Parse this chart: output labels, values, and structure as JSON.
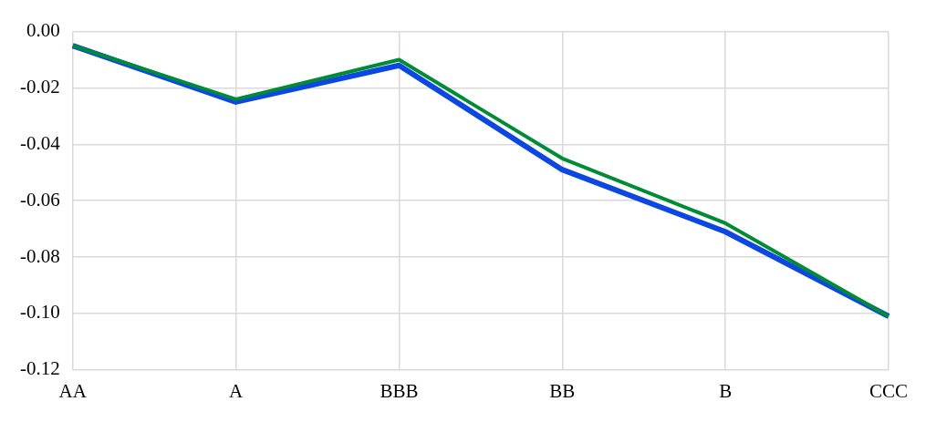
{
  "chart_data": {
    "type": "line",
    "categories": [
      "AA",
      "A",
      "BBB",
      "BB",
      "B",
      "CCC"
    ],
    "series": [
      {
        "color": "#0b47e0",
        "values": [
          -0.005,
          -0.025,
          -0.012,
          -0.049,
          -0.071,
          -0.101
        ]
      },
      {
        "color": "#008c35",
        "values": [
          -0.005,
          -0.024,
          -0.01,
          -0.045,
          -0.068,
          -0.101
        ]
      }
    ],
    "ylim": [
      -0.12,
      0
    ],
    "yticks": [
      {
        "value": -0.12,
        "label": "-0.12"
      },
      {
        "value": -0.1,
        "label": "-0.10"
      },
      {
        "value": -0.08,
        "label": "-0.08"
      },
      {
        "value": -0.06,
        "label": "-0.06"
      },
      {
        "value": -0.04,
        "label": "-0.04"
      },
      {
        "value": -0.02,
        "label": "-0.02"
      },
      {
        "value": 0,
        "label": "0.00"
      }
    ],
    "grid": true,
    "marker": "none",
    "line_style": "solid"
  }
}
